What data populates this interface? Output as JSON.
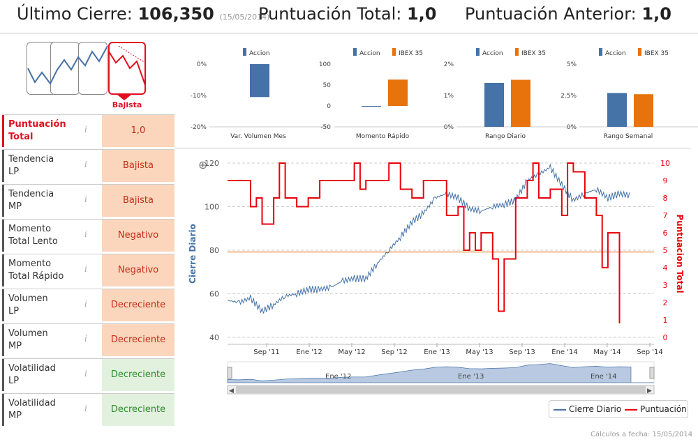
{
  "header": {
    "last_close_label": "Último Cierre:",
    "last_close_value": "106,350",
    "last_close_date": "(15/05/2014)",
    "total_score_label": "Puntuación Total:",
    "total_score_value": "1,0",
    "prev_score_label": "Puntuación Anterior:",
    "prev_score_value": "1,0"
  },
  "trend_badge": "Bajista",
  "scores": [
    {
      "label1": "Puntuación",
      "label2": "Total",
      "value": "1,0",
      "kind": "bad",
      "highlight": true
    },
    {
      "label1": "Tendencia",
      "label2": "LP",
      "value": "Bajista",
      "kind": "bad"
    },
    {
      "label1": "Tendencia",
      "label2": "MP",
      "value": "Bajista",
      "kind": "bad"
    },
    {
      "label1": "Momento",
      "label2": "Total Lento",
      "value": "Negativo",
      "kind": "bad"
    },
    {
      "label1": "Momento",
      "label2": "Total Rápido",
      "value": "Negativo",
      "kind": "bad"
    },
    {
      "label1": "Volumen",
      "label2": "LP",
      "value": "Decreciente",
      "kind": "bad"
    },
    {
      "label1": "Volumen",
      "label2": "MP",
      "value": "Decreciente",
      "kind": "bad"
    },
    {
      "label1": "Volatilidad",
      "label2": "LP",
      "value": "Decreciente",
      "kind": "good"
    },
    {
      "label1": "Volatilidad",
      "label2": "MP",
      "value": "Decreciente",
      "kind": "good"
    }
  ],
  "colors": {
    "accion": "#4572a7",
    "ibex": "#e8720c",
    "price_line": "#4572a7",
    "score_line": "#e8000b",
    "threshold": "#f0a060"
  },
  "chart_data": [
    {
      "type": "bar",
      "title": "Var. Volumen Mes",
      "series": [
        {
          "name": "Accion",
          "values": [
            -10.5
          ]
        }
      ],
      "ylim": [
        -20,
        0
      ],
      "yticks": [
        "0%",
        "-10%",
        "-20%"
      ]
    },
    {
      "type": "bar",
      "title": "Momento Rápido",
      "series": [
        {
          "name": "Accion",
          "values": [
            -2
          ]
        },
        {
          "name": "IBEX 35",
          "values": [
            63
          ]
        }
      ],
      "ylim": [
        -50,
        100
      ],
      "yticks": [
        "100",
        "50",
        "0",
        "-50"
      ]
    },
    {
      "type": "bar",
      "title": "Rango Diario",
      "series": [
        {
          "name": "Accion",
          "values": [
            1.4
          ]
        },
        {
          "name": "IBEX 35",
          "values": [
            1.5
          ]
        }
      ],
      "ylim": [
        0,
        2
      ],
      "yticks": [
        "2%",
        "1%",
        "0%"
      ]
    },
    {
      "type": "bar",
      "title": "Rango Semanal",
      "series": [
        {
          "name": "Accion",
          "values": [
            2.7
          ]
        },
        {
          "name": "IBEX 35",
          "values": [
            2.6
          ]
        }
      ],
      "ylim": [
        0,
        5
      ],
      "yticks": [
        "5%",
        "2.5%",
        "0%"
      ]
    },
    {
      "type": "line",
      "ylabel_left": "Cierre Diario",
      "ylabel_right": "Puntuacion Total",
      "yleft_ticks": [
        "120",
        "100",
        "80",
        "60",
        "40"
      ],
      "yleft_range": [
        40,
        120
      ],
      "yright_ticks": [
        "10",
        "9",
        "8",
        "7",
        "6",
        "5",
        "4",
        "3",
        "2",
        "1",
        "0"
      ],
      "yright_range": [
        0,
        10
      ],
      "x_ticks": [
        "Sep '11",
        "Ene '12",
        "May '12",
        "Sep '12",
        "Ene '13",
        "May '13",
        "Sep '13",
        "Ene '14",
        "May '14",
        "Sep '14"
      ],
      "x_range": [
        0,
        37
      ],
      "threshold_score": 4.9,
      "price_series": {
        "name": "Cierre Diario",
        "x": [
          0,
          1,
          2,
          3,
          4,
          5,
          6,
          7,
          8,
          9,
          10,
          11,
          12,
          13,
          14,
          15,
          16,
          17,
          18,
          19,
          20,
          21,
          22,
          23,
          24,
          25,
          26,
          27,
          28,
          29,
          30,
          31,
          32,
          33,
          34,
          35
        ],
        "y": [
          57,
          56,
          58,
          52,
          55,
          59,
          60,
          62,
          62,
          63,
          66,
          67,
          67,
          74,
          80,
          86,
          93,
          97,
          104,
          106,
          104,
          99,
          98,
          100,
          101,
          103,
          112,
          115,
          118,
          110,
          103,
          106,
          108,
          104,
          106,
          105
        ]
      },
      "score_series": {
        "name": "Puntuación",
        "x": [
          0,
          1,
          2,
          2.5,
          3,
          4,
          4.5,
          5,
          6,
          7,
          8,
          9,
          10,
          11,
          11.5,
          12,
          13,
          14,
          15,
          16,
          16.5,
          17,
          18,
          19,
          20,
          20.5,
          21,
          21.5,
          22,
          23,
          23.5,
          24,
          25,
          26,
          26.5,
          27,
          28,
          29,
          29.5,
          30,
          31,
          32,
          32.5,
          33,
          34
        ],
        "y": [
          9,
          9,
          7.5,
          8,
          6.5,
          8,
          10,
          8,
          7.5,
          8,
          9,
          9,
          9,
          10,
          8.5,
          9,
          9,
          10,
          8.5,
          8,
          8,
          9,
          9,
          7,
          7.5,
          5,
          6,
          5,
          6,
          4.5,
          1.5,
          4.5,
          8,
          9,
          10,
          8,
          8.5,
          7,
          10,
          9.5,
          8,
          7,
          4,
          6,
          0.8
        ]
      },
      "legend": [
        "Cierre Diario",
        "Puntuación"
      ]
    }
  ],
  "navigator_ticks": [
    "Ene '12",
    "Ene '13",
    "Ene '14"
  ],
  "footer": "Cálculos a fecha: 15/05/2014"
}
